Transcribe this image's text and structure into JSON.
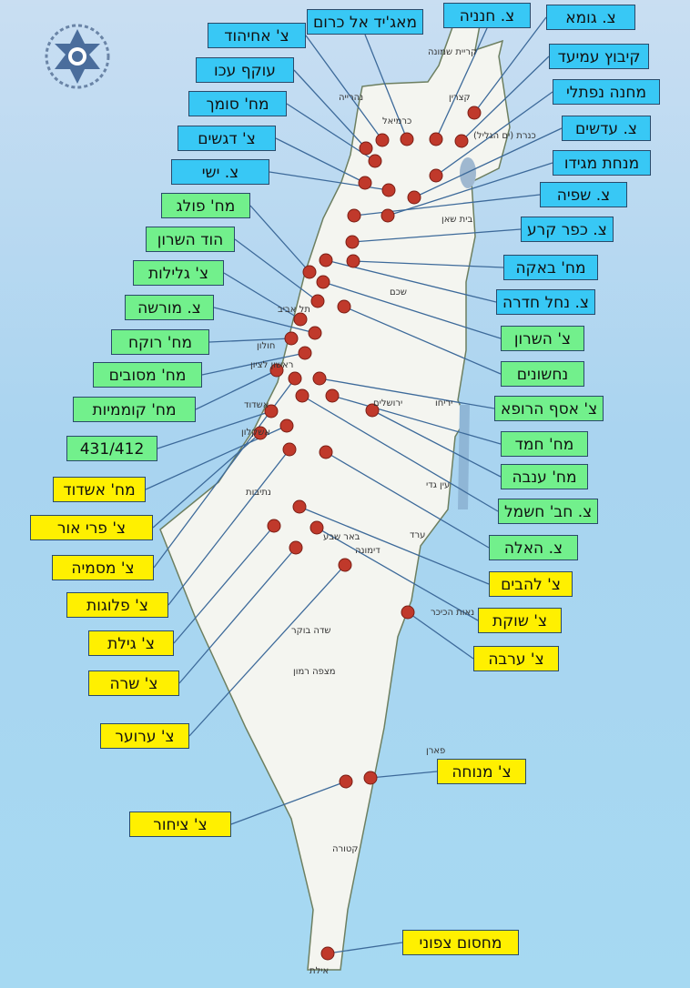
{
  "colors": {
    "north": "#38c8f5",
    "center": "#72f08c",
    "south": "#fff000",
    "dot": "#c0392b",
    "line": "#3d6a9a",
    "land": "#f4f5f0",
    "sea": "#a9d4f0"
  },
  "logo": {
    "icon": "israel-police-emblem"
  },
  "labels_north": [
    "צ. חנניה",
    "מאג'יד אל כרום",
    "צ' אחיהוד",
    "צ. גומא",
    "עוקף עכו",
    "קיבוץ עמיעד",
    "מח' סומך",
    "מחנה נפתלי",
    "צ' דגשים",
    "צ. עדשים",
    "צ. ישי",
    "מנחת מגידו",
    "צ. שפיה",
    "צ. כפר קרע",
    "מח' באקה",
    "צ. נחל חדרה"
  ],
  "labels_center": [
    "מח' פולג",
    "הוד השרון",
    "צ' גלילות",
    "צ. מורשה",
    "מח' רוקח",
    "מח' מסובים",
    "מח' קוממיות",
    "431/412",
    "צ' השרון",
    "נחשונים",
    "צ' אסף הרופא",
    "מח' חמד",
    "מח' ענבה",
    "צ. חב' חשמל",
    "צ. האלה"
  ],
  "labels_south": [
    "מח' אשדוד",
    "צ' פרי אור",
    "צ' מסמיה",
    "צ' פלוגות",
    "צ' גילת",
    "צ' שרה",
    "צ' ערוער",
    "צ' להבים",
    "צ' שוקת",
    "צ' ערבה",
    "צ' מנוחה",
    "צ' ציחור",
    "מחסום צפוני"
  ],
  "towns": [
    "קריית שמונה",
    "נהרייה",
    "כרמיאל",
    "קצרין",
    "כנרת (ים הגליל)",
    "בית שאן",
    "שכם",
    "תל אביב",
    "חולון",
    "ראשון לציון",
    "אשדוד",
    "אשקלון",
    "ירושלים",
    "יריחו",
    "עין גדי",
    "נתיבות",
    "באר שבע",
    "ערד",
    "דימונה",
    "שדה בוקר",
    "מצפה רמון",
    "נאות הכיכר",
    "פארן",
    "קטורה",
    "אילת"
  ]
}
